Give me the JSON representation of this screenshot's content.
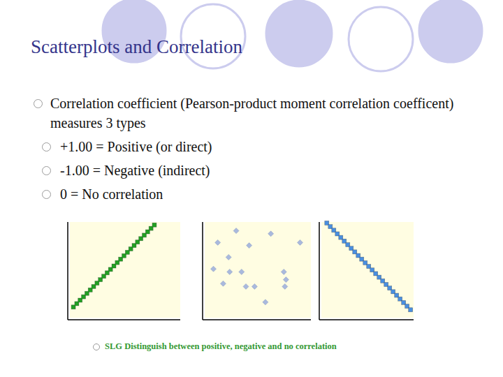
{
  "title": "Scatterplots and Correlation",
  "bullets": [
    {
      "text": "Correlation coefficient (Pearson-product moment correlation coefficent) measures 3 types",
      "sub": [
        "+1.00 = Positive (or direct)",
        "-1.00 = Negative (indirect)",
        "0 = No correlation"
      ]
    }
  ],
  "note": "SLG  Distinguish between positive, negative and no correlation",
  "chart_data": [
    {
      "type": "scatter",
      "color": "#22a022",
      "marker": "square",
      "tick_labels": false,
      "xlim": [
        0,
        10
      ],
      "ylim": [
        0,
        10
      ],
      "x": [
        0.5,
        0.8,
        1.1,
        1.4,
        1.7,
        2.0,
        2.3,
        2.6,
        2.9,
        3.2,
        3.5,
        3.8,
        4.1,
        4.4,
        4.7,
        5.0,
        5.3,
        5.6,
        5.9,
        6.2,
        6.5,
        6.8,
        7.1,
        7.4,
        7.7
      ],
      "values": [
        1.3,
        1.65,
        2.0,
        2.35,
        2.7,
        3.05,
        3.4,
        3.75,
        4.1,
        4.45,
        4.8,
        5.15,
        5.5,
        5.85,
        6.2,
        6.55,
        6.9,
        7.25,
        7.6,
        7.95,
        8.3,
        8.65,
        9.0,
        9.35,
        9.7
      ]
    },
    {
      "type": "scatter",
      "color": "#a9b9dd",
      "marker": "diamond",
      "tick_labels": false,
      "xlim": [
        0,
        10
      ],
      "ylim": [
        0,
        10
      ],
      "x": [
        3.1,
        6.3,
        1.4,
        9.0,
        4.3,
        2.4,
        1.0,
        2.5,
        3.6,
        7.5,
        7.7,
        1.9,
        4.0,
        4.8,
        7.6,
        5.8
      ],
      "values": [
        9.1,
        8.8,
        7.9,
        7.9,
        7.6,
        6.4,
        5.2,
        4.9,
        4.9,
        4.9,
        4.1,
        3.7,
        3.4,
        3.4,
        3.4,
        1.8
      ]
    },
    {
      "type": "scatter",
      "color": "#4a8fe0",
      "marker": "square",
      "tick_labels": false,
      "xlim": [
        0,
        10
      ],
      "ylim": [
        0,
        10
      ],
      "x": [
        0.8,
        1.17,
        1.54,
        1.91,
        2.28,
        2.65,
        3.02,
        3.39,
        3.76,
        4.13,
        4.5,
        4.87,
        5.24,
        5.61,
        5.98,
        6.35,
        6.72,
        7.09,
        7.46,
        7.83,
        8.2,
        8.57,
        8.94,
        9.31,
        9.68
      ],
      "values": [
        9.9,
        9.53,
        9.16,
        8.79,
        8.42,
        8.05,
        7.68,
        7.31,
        6.94,
        6.57,
        6.2,
        5.83,
        5.46,
        5.09,
        4.72,
        4.35,
        3.98,
        3.61,
        3.24,
        2.87,
        2.5,
        2.13,
        1.76,
        1.39,
        1.02
      ]
    }
  ]
}
